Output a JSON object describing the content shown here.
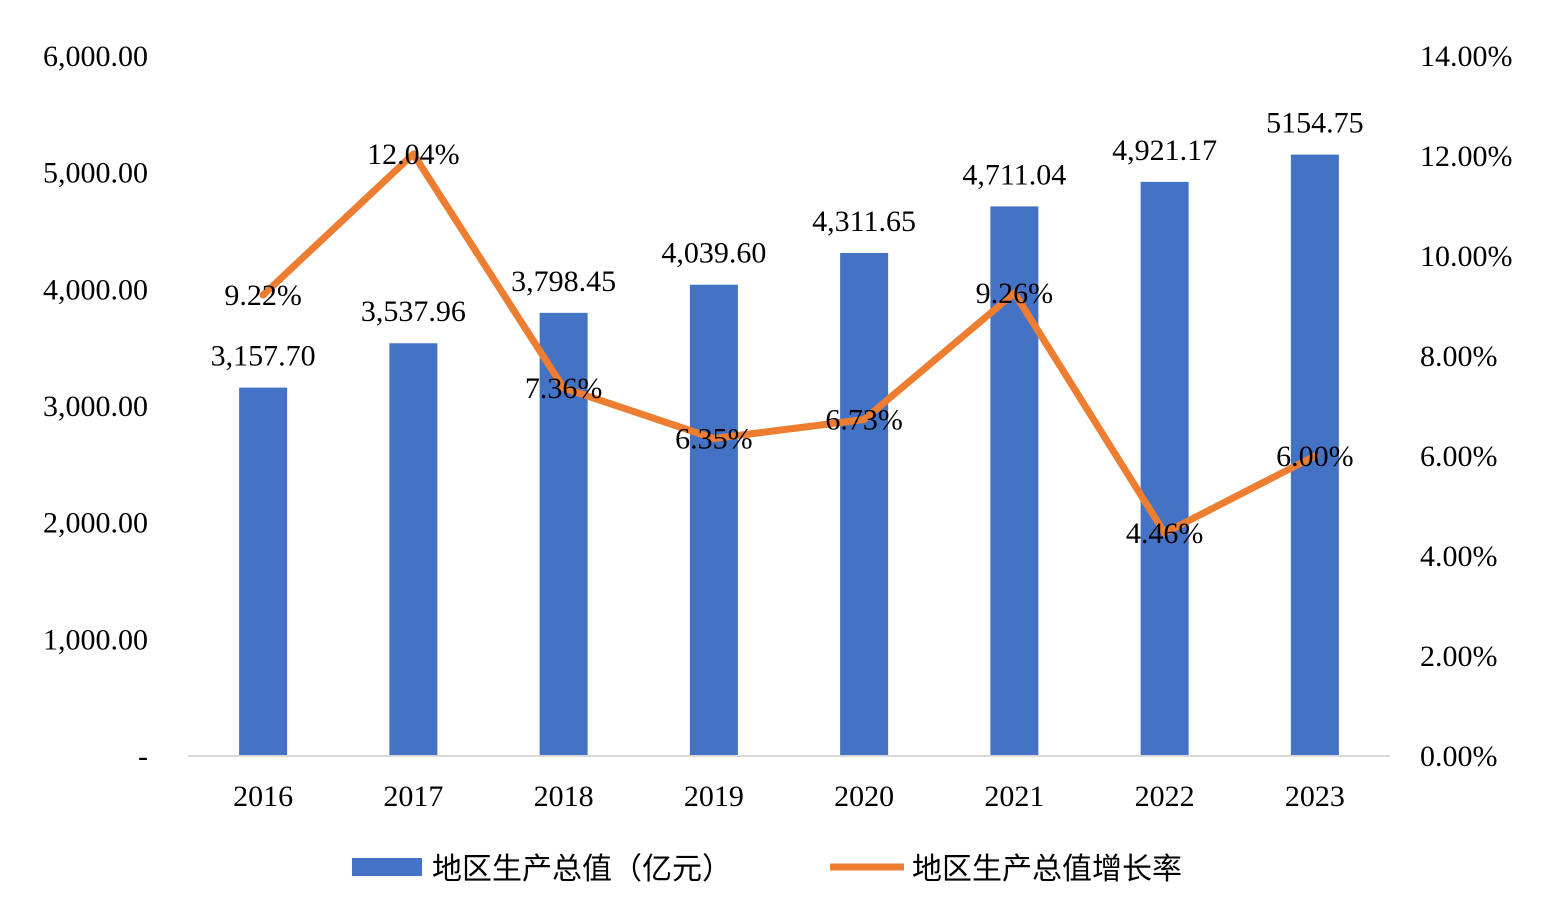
{
  "chart_data": {
    "type": "bar+line",
    "categories": [
      "2016",
      "2017",
      "2018",
      "2019",
      "2020",
      "2021",
      "2022",
      "2023"
    ],
    "series": [
      {
        "name": "地区生产总值（亿元）",
        "type": "bar",
        "axis": "left",
        "color": "#4472C4",
        "values": [
          3157.7,
          3537.96,
          3798.45,
          4039.6,
          4311.65,
          4711.04,
          4921.17,
          5154.75
        ],
        "labels": [
          "3,157.70",
          "3,537.96",
          "3,798.45",
          "4,039.60",
          "4,311.65",
          "4,711.04",
          "4,921.17",
          "5154.75"
        ]
      },
      {
        "name": "地区生产总值增长率",
        "type": "line",
        "axis": "right",
        "color": "#ED7D31",
        "values": [
          9.22,
          12.04,
          7.36,
          6.35,
          6.73,
          9.26,
          4.46,
          6.0
        ],
        "labels": [
          "9.22%",
          "12.04%",
          "7.36%",
          "6.35%",
          "6.73%",
          "9.26%",
          "4.46%",
          "6.00%"
        ]
      }
    ],
    "y_left": {
      "min": 0,
      "max": 6000,
      "ticks": [
        0,
        1000,
        2000,
        3000,
        4000,
        5000,
        6000
      ],
      "tick_labels": [
        "-",
        "1,000.00",
        "2,000.00",
        "3,000.00",
        "4,000.00",
        "5,000.00",
        "6,000.00"
      ]
    },
    "y_right": {
      "min": 0,
      "max": 14,
      "ticks": [
        0,
        2,
        4,
        6,
        8,
        10,
        12,
        14
      ],
      "tick_labels": [
        "0.00%",
        "2.00%",
        "4.00%",
        "6.00%",
        "8.00%",
        "10.00%",
        "12.00%",
        "14.00%"
      ]
    },
    "title": "",
    "xlabel": "",
    "ylabel": "",
    "grid": false,
    "legend_position": "bottom"
  }
}
